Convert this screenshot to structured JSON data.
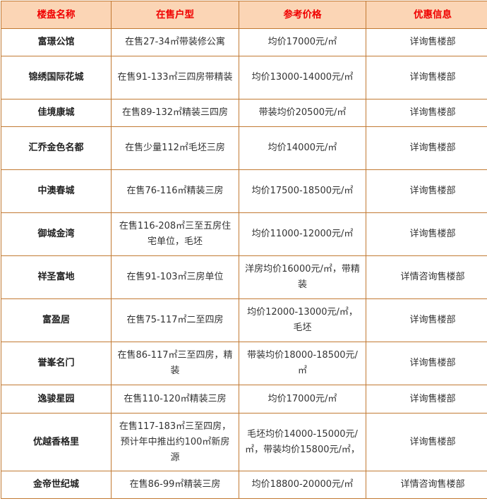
{
  "table": {
    "headers": [
      "楼盘名称",
      "在售户型",
      "参考价格",
      "优惠信息"
    ],
    "rows": [
      {
        "name": "富璟公馆",
        "units": "在售27-34㎡带装修公寓",
        "price": "均价17000元/㎡",
        "offer": "详询售楼部"
      },
      {
        "name": "锦绣国际花城",
        "units": "在售91-133㎡三四房带精装",
        "price": "均价13000-14000元/㎡",
        "offer": "详询售楼部"
      },
      {
        "name": "佳境康城",
        "units": "在售89-132㎡精装三四房",
        "price": "带装均价20500元/㎡",
        "offer": "详询售楼部"
      },
      {
        "name": "汇乔金色名都",
        "units": "在售少量112㎡毛坯三房",
        "price": "均价14000元/㎡",
        "offer": "详询售楼部"
      },
      {
        "name": "中澳春城",
        "units": "在售76-116㎡精装三房",
        "price": "均价17500-18500元/㎡",
        "offer": "详询售楼部"
      },
      {
        "name": "御城金湾",
        "units": "在售116-208㎡三至五房住宅单位，毛坯",
        "price": "均价11000-12000元/㎡",
        "offer": "详询售楼部"
      },
      {
        "name": "祥圣富地",
        "units": "在售91-103㎡三房单位",
        "price": "洋房均价16000元/㎡，带精装",
        "offer": "详情咨询售楼部"
      },
      {
        "name": "富盈居",
        "units": "在售75-117㎡二至四房",
        "price": "均价12000-13000元/㎡，毛坯",
        "offer": "详询售楼部"
      },
      {
        "name": "誉峯名门",
        "units": "在售86-117㎡三至四房，精装",
        "price": "带装均价18000-18500元/㎡",
        "offer": "详询售楼部"
      },
      {
        "name": "逸骏星园",
        "units": "在售110-120㎡精装三房",
        "price": "均价17000元/㎡",
        "offer": "详询售楼部"
      },
      {
        "name": "优越香格里",
        "units": "在售117-183㎡三至四房，预计年中推出约100㎡新房源",
        "price": "毛坯均价14000-15000元/㎡，带装均价15800元/㎡，",
        "offer": "详询售楼部"
      },
      {
        "name": "金帝世纪城",
        "units": "在售86-99㎡精装三房",
        "price": "均价18800-20000元/㎡",
        "offer": "详情咨询售楼部"
      }
    ]
  }
}
